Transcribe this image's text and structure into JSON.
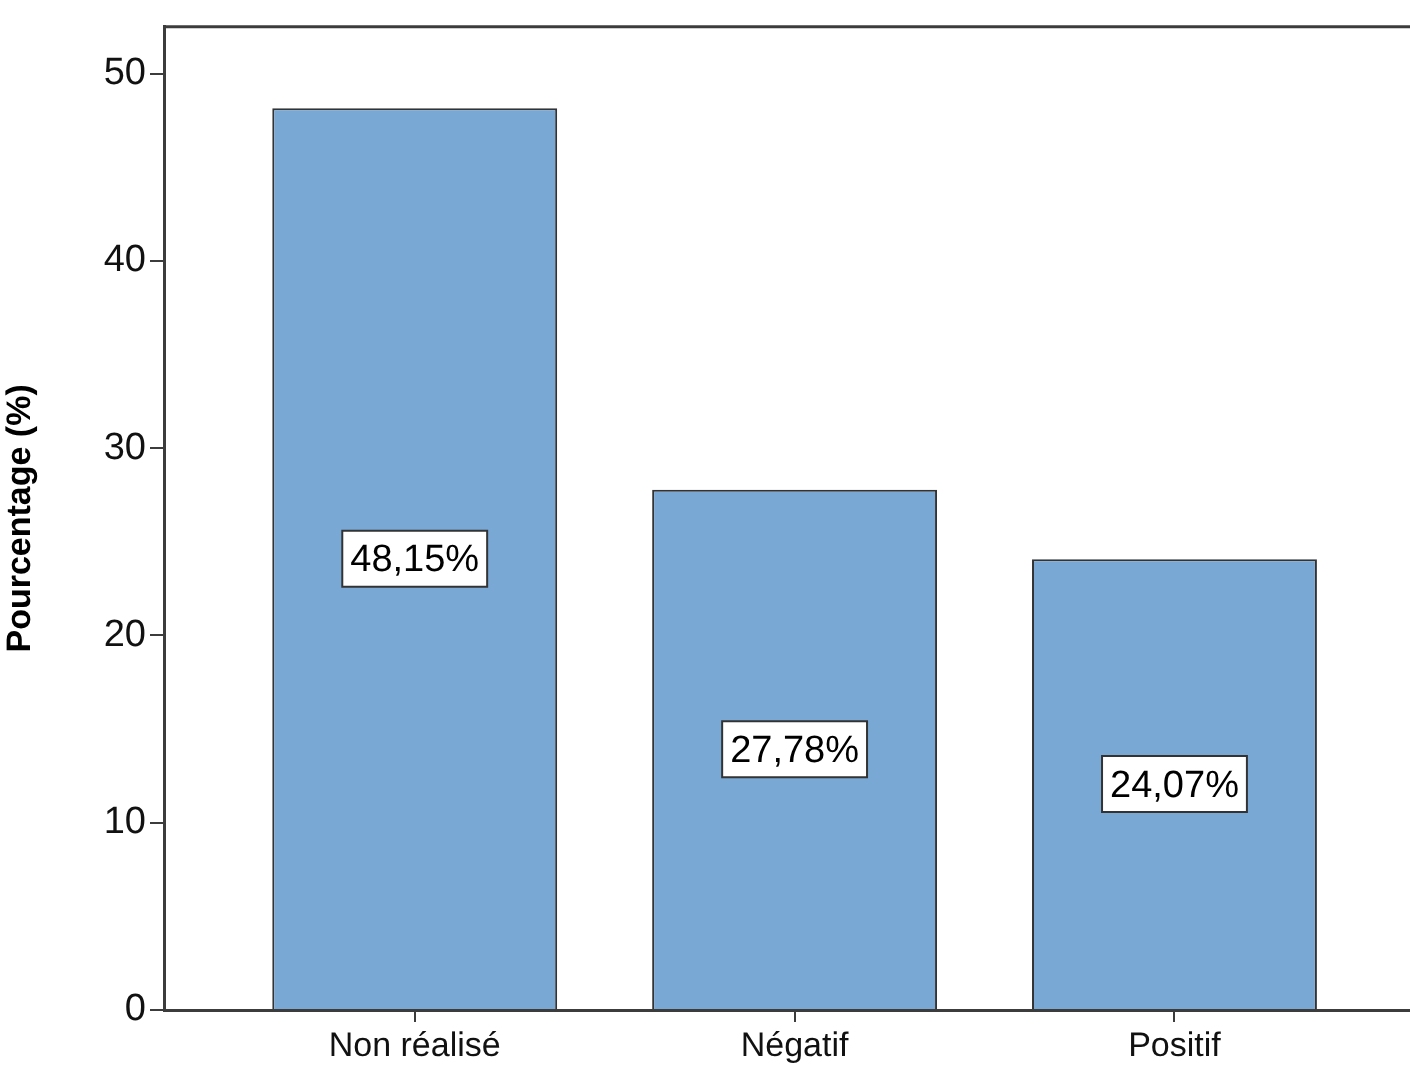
{
  "chart_data": {
    "type": "bar",
    "ylabel": "Pourcentage (%)",
    "categories": [
      "Non réalisé",
      "Négatif",
      "Positif"
    ],
    "values": [
      48.15,
      27.78,
      24.07
    ],
    "color": "#79a8d5",
    "value_labels": [
      "48,15%",
      "27,78%",
      "24,07%"
    ],
    "ylim": [
      0,
      52.5
    ],
    "yticks": [
      0,
      10,
      20,
      30,
      40,
      50
    ],
    "grid": false,
    "legend": false
  }
}
